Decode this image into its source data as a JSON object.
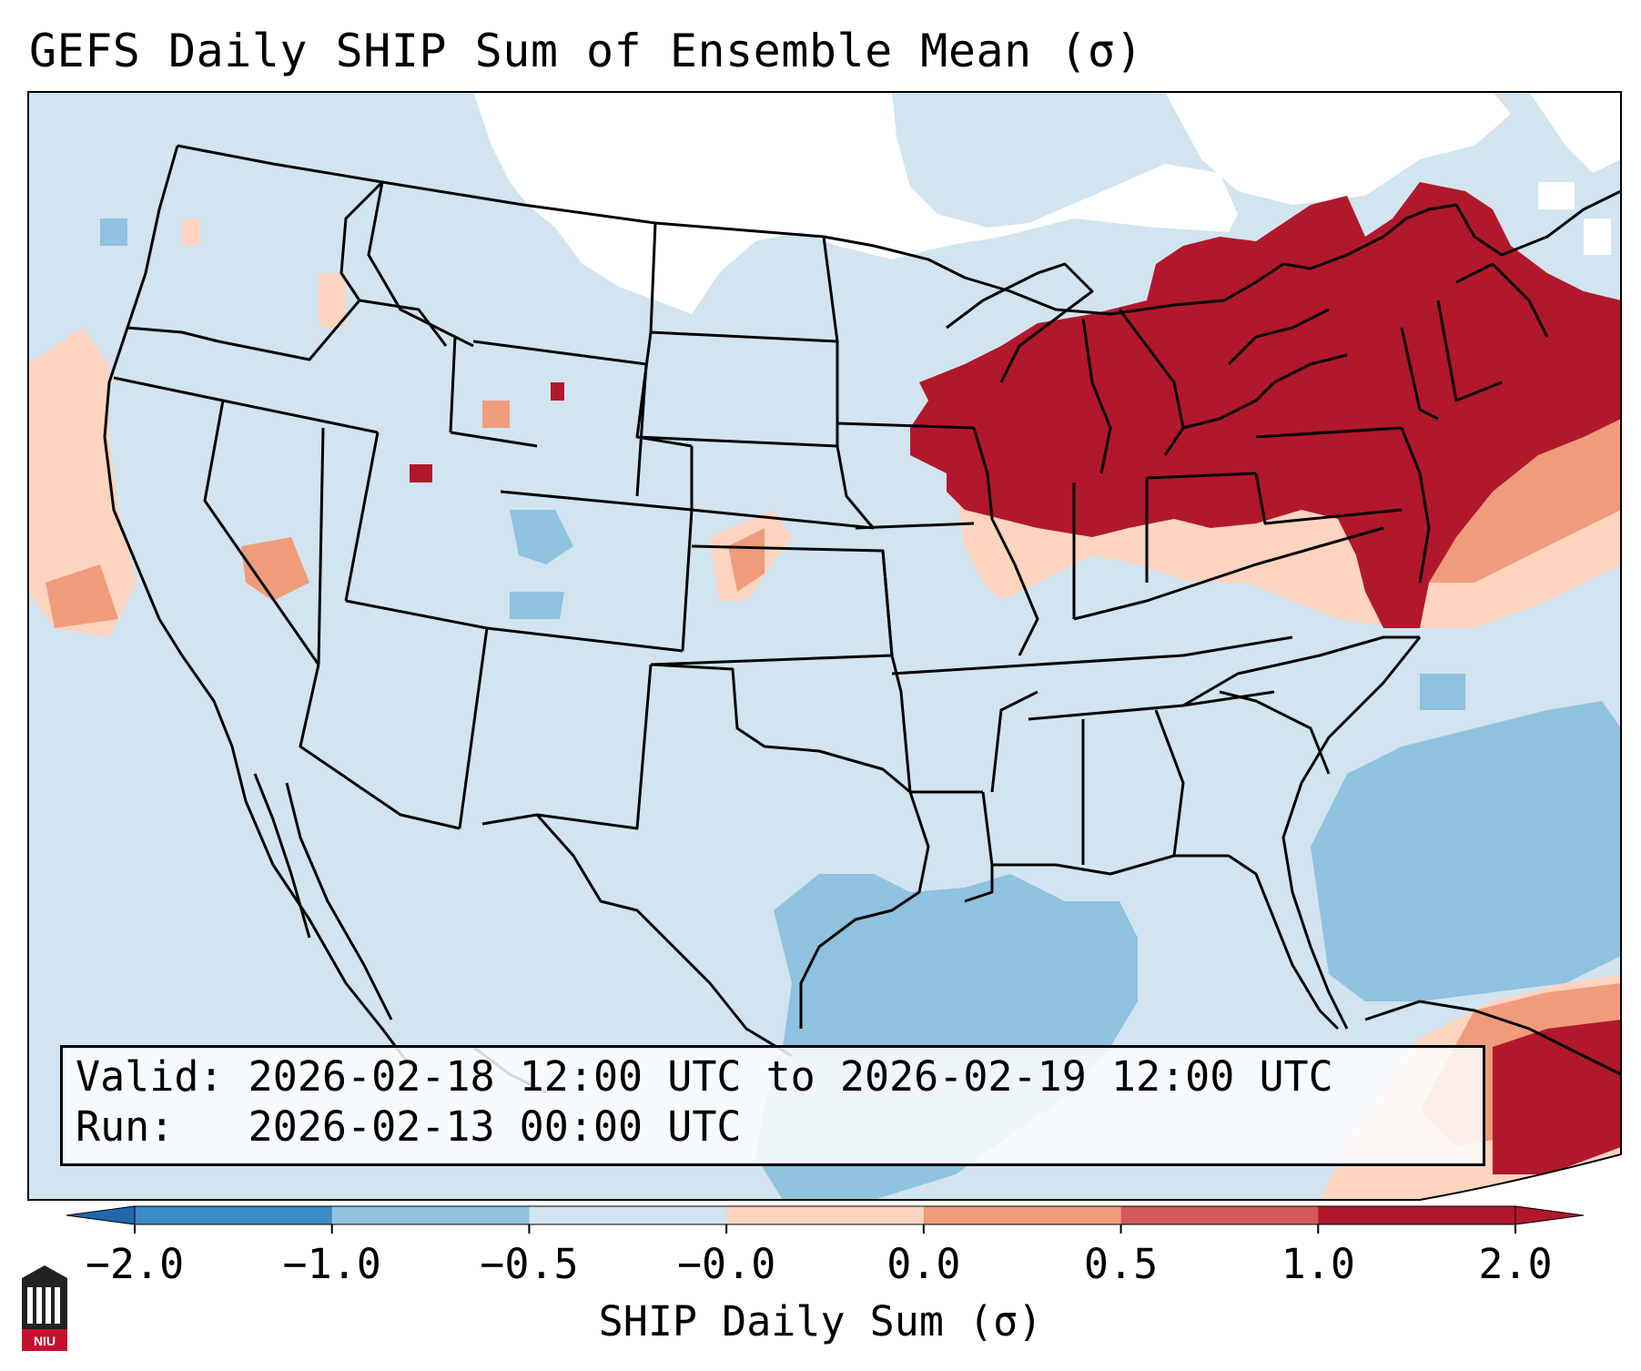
{
  "title": "GEFS Daily SHIP Sum of Ensemble Mean (σ)",
  "info": {
    "valid_label": "Valid:",
    "valid_value": "2026-02-18 12:00 UTC to 2026-02-19 12:00 UTC",
    "run_label": "Run:",
    "run_value": "2026-02-13 00:00 UTC"
  },
  "colorbar": {
    "label": "SHIP Daily Sum (σ)",
    "ticks": [
      "−2.0",
      "−1.0",
      "−0.5",
      "−0.0",
      "0.0",
      "0.5",
      "1.0",
      "2.0"
    ],
    "colors": [
      "#3a8bc7",
      "#8fc2de",
      "#d1e4f0",
      "#f7f7f7",
      "#fdd4bf",
      "#f09c7c",
      "#d4595a",
      "#b2182b"
    ],
    "extend_low_color": "#2166ac",
    "extend_high_color": "#b2182b"
  },
  "map": {
    "land_ocean_background": "#d1e4f0",
    "extent": "CONUS",
    "projection": "Lambert Conformal"
  },
  "logo": {
    "text": "NIU",
    "icon": "niu-building-logo"
  }
}
